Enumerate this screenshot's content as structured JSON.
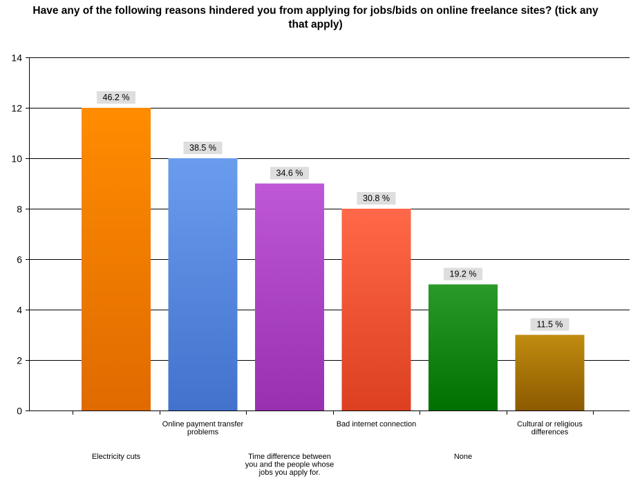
{
  "chart_data": {
    "type": "bar",
    "title": "Have any of the following reasons hindered you from applying for jobs/bids on online freelance sites? (tick any that apply)",
    "xlabel": "",
    "ylabel": "",
    "ylim": [
      0,
      14
    ],
    "yticks": [
      0,
      2,
      4,
      6,
      8,
      10,
      12,
      14
    ],
    "grid": true,
    "legend": "none",
    "categories": [
      "Electricity cuts",
      "Online payment transfer problems",
      "Time difference between you and the people whose jobs you apply for.",
      "Bad internet connection",
      "None",
      "Cultural or religious differences"
    ],
    "values": [
      12,
      10,
      9,
      8,
      5,
      3
    ],
    "data_labels": [
      "46.2 %",
      "38.5 %",
      "34.6 %",
      "30.8 %",
      "19.2 %",
      "11.5 %"
    ],
    "colors": [
      [
        "#ff8c00",
        "#e06a00"
      ],
      [
        "#6a9cee",
        "#4272cc"
      ],
      [
        "#be58d6",
        "#9830b0"
      ],
      [
        "#ff6848",
        "#dc4020"
      ],
      [
        "#2a9a2a",
        "#007000"
      ],
      [
        "#c08c10",
        "#8c5a00"
      ]
    ]
  }
}
